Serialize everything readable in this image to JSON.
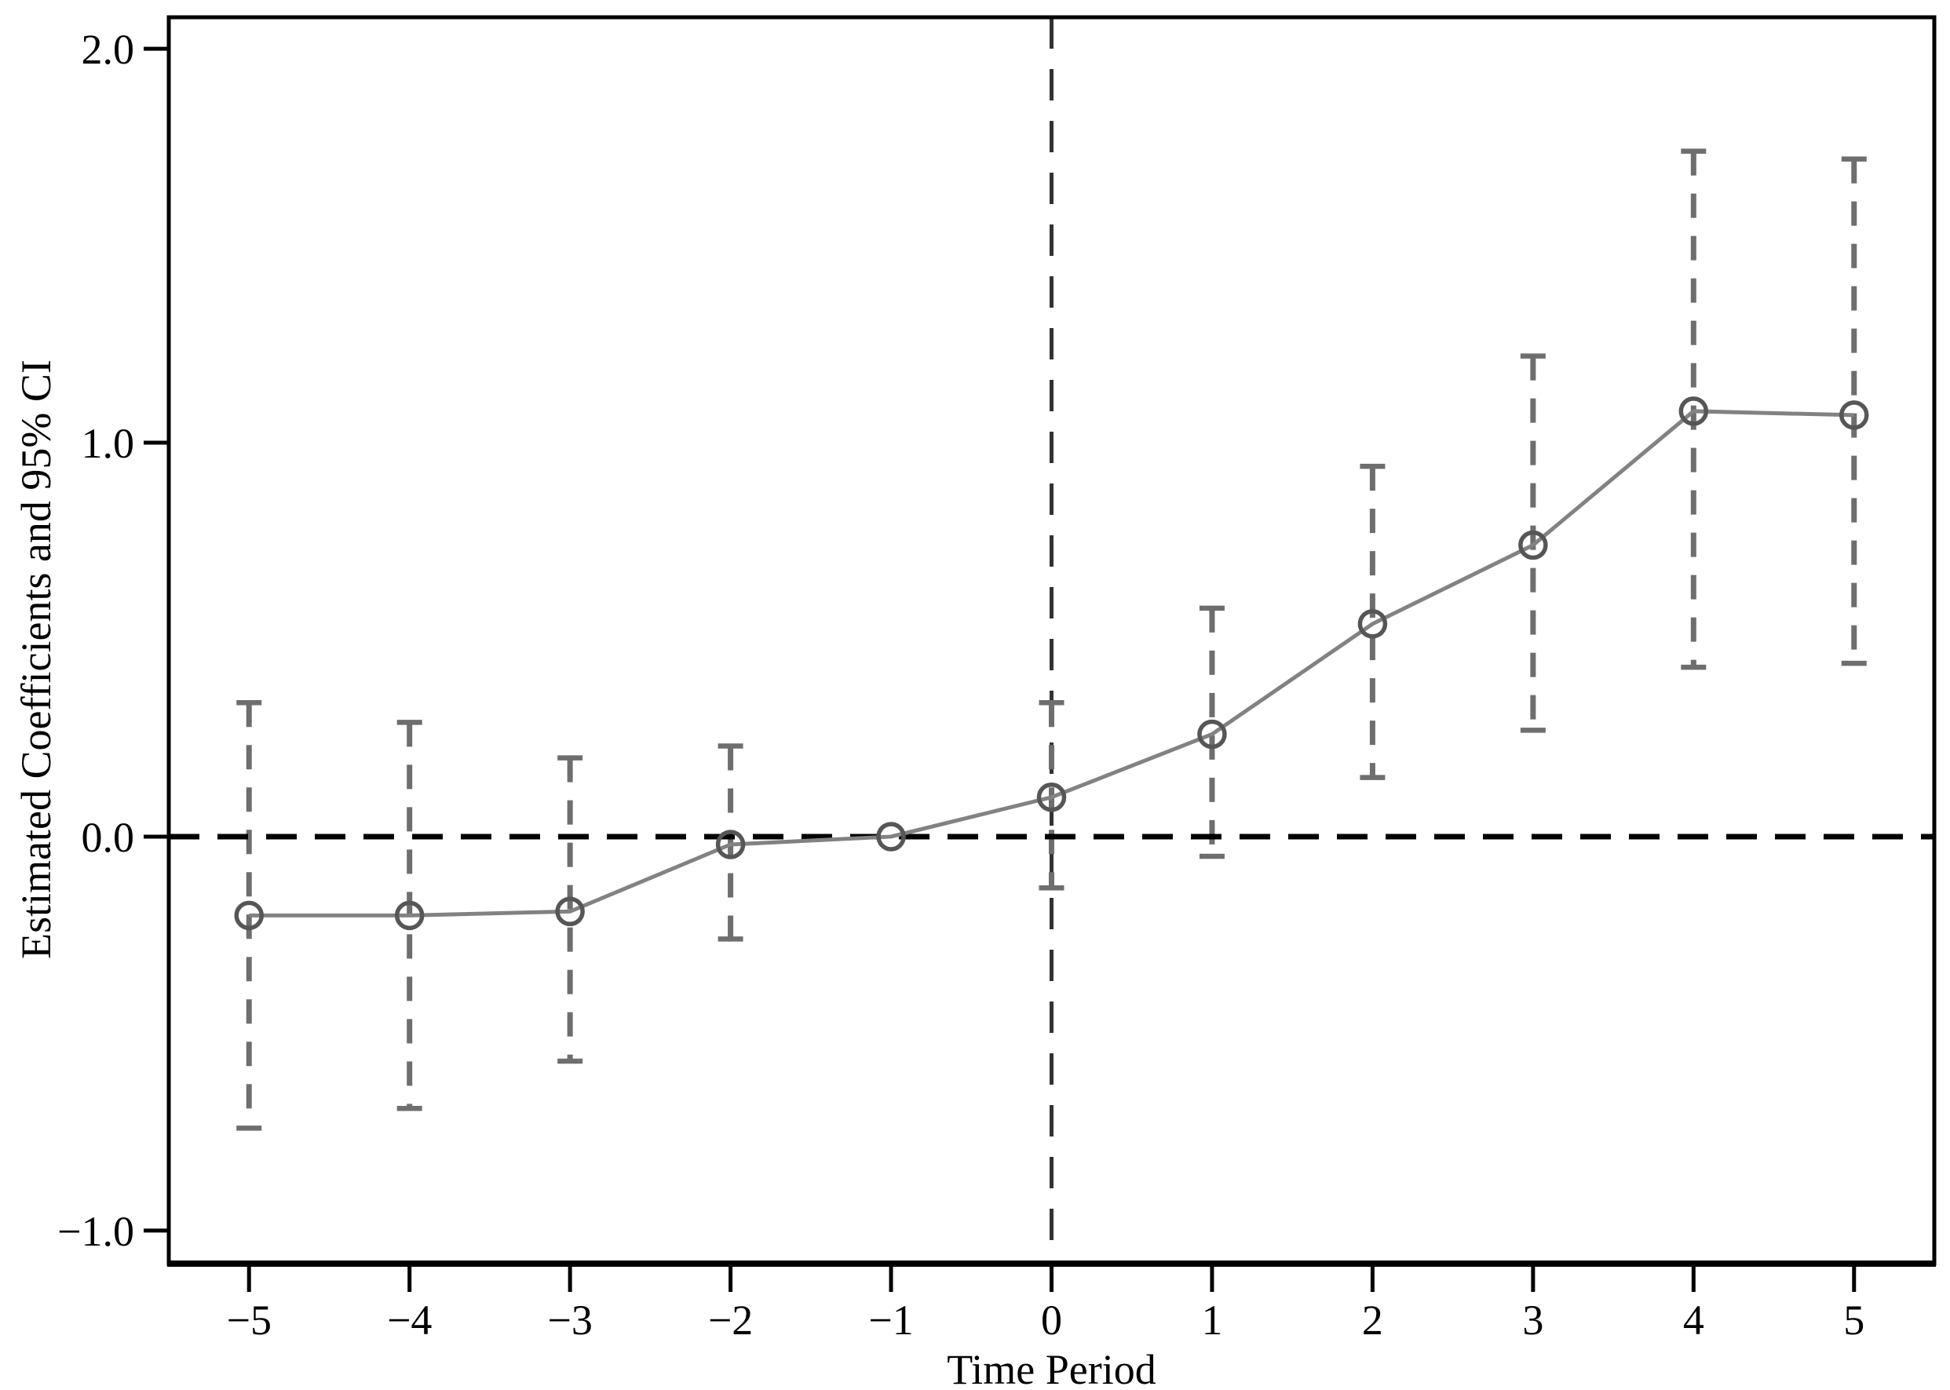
{
  "figure": {
    "background": "#ffffff"
  },
  "chart_data": {
    "type": "line",
    "subtype": "event-study coefficients with 95% confidence interval whiskers",
    "title": "",
    "xlabel": "Time Period",
    "ylabel": "Estimated Coefficients and 95% CI",
    "xlim": [
      -5.5,
      5.5
    ],
    "ylim": [
      -1.084,
      2.08
    ],
    "grid": false,
    "legend": false,
    "x_ticks": [
      {
        "v": -5,
        "label": "−5"
      },
      {
        "v": -4,
        "label": "−4"
      },
      {
        "v": -3,
        "label": "−3"
      },
      {
        "v": -2,
        "label": "−2"
      },
      {
        "v": -1,
        "label": "−1"
      },
      {
        "v": 0,
        "label": "0"
      },
      {
        "v": 1,
        "label": "1"
      },
      {
        "v": 2,
        "label": "2"
      },
      {
        "v": 3,
        "label": "3"
      },
      {
        "v": 4,
        "label": "4"
      },
      {
        "v": 5,
        "label": "5"
      }
    ],
    "y_ticks": [
      {
        "v": -1.0,
        "label": "−1.0"
      },
      {
        "v": 0.0,
        "label": "0.0"
      },
      {
        "v": 1.0,
        "label": "1.0"
      },
      {
        "v": 2.0,
        "label": "2.0"
      }
    ],
    "points": [
      {
        "t": -5,
        "est": -0.2,
        "lo": -0.74,
        "hi": 0.34
      },
      {
        "t": -4,
        "est": -0.2,
        "lo": -0.69,
        "hi": 0.29
      },
      {
        "t": -3,
        "est": -0.19,
        "lo": -0.57,
        "hi": 0.2
      },
      {
        "t": -2,
        "est": -0.02,
        "lo": -0.26,
        "hi": 0.23
      },
      {
        "t": -1,
        "est": 0.0,
        "lo": null,
        "hi": null
      },
      {
        "t": 0,
        "est": 0.1,
        "lo": -0.13,
        "hi": 0.34
      },
      {
        "t": 1,
        "est": 0.26,
        "lo": -0.05,
        "hi": 0.58
      },
      {
        "t": 2,
        "est": 0.54,
        "lo": 0.15,
        "hi": 0.94
      },
      {
        "t": 3,
        "est": 0.74,
        "lo": 0.27,
        "hi": 1.22
      },
      {
        "t": 4,
        "est": 1.08,
        "lo": 0.43,
        "hi": 1.74
      },
      {
        "t": 5,
        "est": 1.07,
        "lo": 0.44,
        "hi": 1.72
      }
    ],
    "reference_lines": {
      "horizontal_y": 0.0,
      "vertical_x": 0
    },
    "colors": {
      "axis": "#000000",
      "text": "#000000",
      "series_line": "#828282",
      "marker_stroke": "#565656",
      "whisker": "#6e6e6e",
      "h_reference": "#000000",
      "v_reference": "#333333",
      "background": "#ffffff"
    }
  }
}
